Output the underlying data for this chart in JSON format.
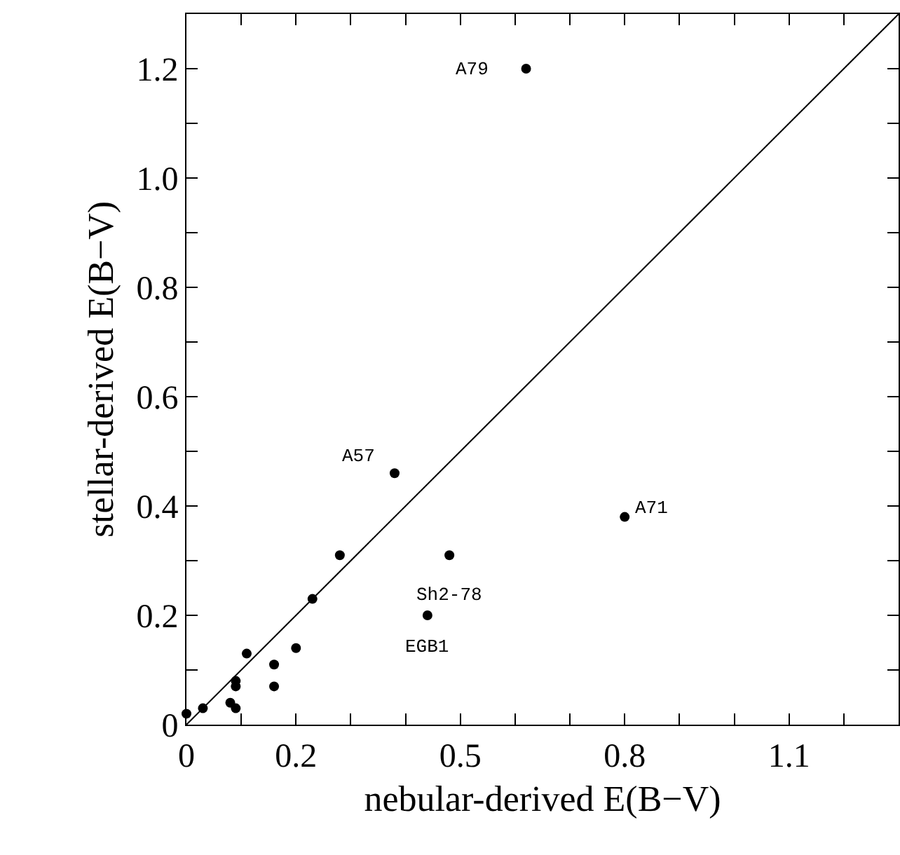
{
  "chart_data": {
    "type": "scatter",
    "xlabel": "nebular-derived E(B−V)",
    "ylabel": "stellar-derived E(B−V)",
    "xlim": [
      0,
      1.3
    ],
    "ylim": [
      0,
      1.3
    ],
    "xticks": [
      0,
      {
        "value": 0.1,
        "label": null
      },
      0.2,
      {
        "value": 0.3,
        "label": null
      },
      {
        "value": 0.4,
        "label": null
      },
      0.5,
      {
        "value": 0.6,
        "label": null
      },
      {
        "value": 0.7,
        "label": null
      },
      0.8,
      {
        "value": 0.9,
        "label": null
      },
      {
        "value": 1.0,
        "label": null
      },
      1.1,
      {
        "value": 1.2,
        "label": null
      }
    ],
    "yticks": [
      0,
      {
        "value": 0.1,
        "label": null
      },
      0.2,
      {
        "value": 0.3,
        "label": null
      },
      0.4,
      {
        "value": 0.5,
        "label": null
      },
      0.6,
      {
        "value": 0.7,
        "label": null
      },
      0.8,
      {
        "value": 0.9,
        "label": null
      },
      {
        "value": 1.0,
        "label": "1.0"
      },
      {
        "value": 1.1,
        "label": null
      },
      1.2
    ],
    "grid": false,
    "marker": "circle",
    "series": [
      {
        "color": "#000000",
        "x": [
          0,
          0.03,
          0.08,
          0.09,
          0.09,
          0.09,
          0.11,
          0.16,
          0.16,
          0.2,
          0.23,
          0.28,
          0.44,
          0.48,
          0.8,
          0.38,
          0.62
        ],
        "values": [
          0.02,
          0.03,
          0.04,
          0.03,
          0.07,
          0.08,
          0.13,
          0.07,
          0.11,
          0.14,
          0.23,
          0.31,
          0.2,
          0.31,
          0.38,
          0.46,
          1.2
        ]
      },
      {
        "type": "line",
        "color": "#000000",
        "x": [
          0,
          1.3
        ],
        "values": [
          0,
          1.3
        ],
        "marker": "none",
        "line_style": "solid"
      }
    ],
    "annotations": [
      {
        "text": "A79",
        "x": 0.62,
        "y": 1.2
      },
      {
        "text": "A57",
        "x": 0.38,
        "y": 0.46
      },
      {
        "text": "A71",
        "x": 0.8,
        "y": 0.38
      },
      {
        "text": "Sh2-78",
        "x": 0.48,
        "y": 0.31
      },
      {
        "text": "EGB1",
        "x": 0.44,
        "y": 0.2
      }
    ]
  }
}
